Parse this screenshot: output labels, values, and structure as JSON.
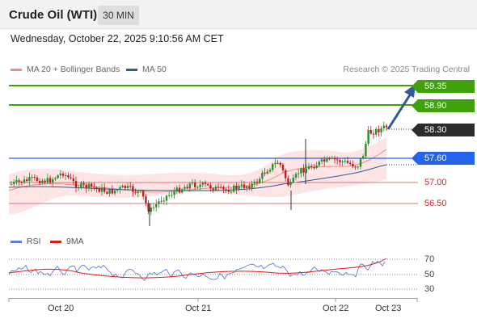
{
  "header": {
    "title": "Crude Oil (WTI)",
    "timeframe": "30 MIN"
  },
  "timestamp": "Wednesday, October 22, 2025 9:10:56 AM CET",
  "legend": {
    "bollinger": {
      "label": "MA 20 + Bollinger Bands",
      "color": "#f28b82"
    },
    "ma50": {
      "label": "MA 50",
      "color": "#2e5c9a"
    },
    "credit": "Research © 2025 Trading Central"
  },
  "levels": {
    "r2": "59.35",
    "r1": "58.90",
    "last": "58.30",
    "pivot": "57.60",
    "s1": "57.00",
    "s2": "56.50"
  },
  "rsi": {
    "legend_rsi": "RSI",
    "legend_ma": "9MA",
    "rsi_color": "#5b7fd6",
    "ma_color": "#e01b1b",
    "axis": [
      "70",
      "50",
      "30"
    ]
  },
  "xaxis": [
    "Oct 20",
    "Oct 21",
    "Oct 22",
    "Oct 23"
  ],
  "colors": {
    "resistance": "#3fa10b",
    "pivot": "#2563eb",
    "support": "#e8707a",
    "up_candle": "#2e8b2e",
    "down_candle": "#b22222",
    "arrow": "#2e5c9a"
  }
}
